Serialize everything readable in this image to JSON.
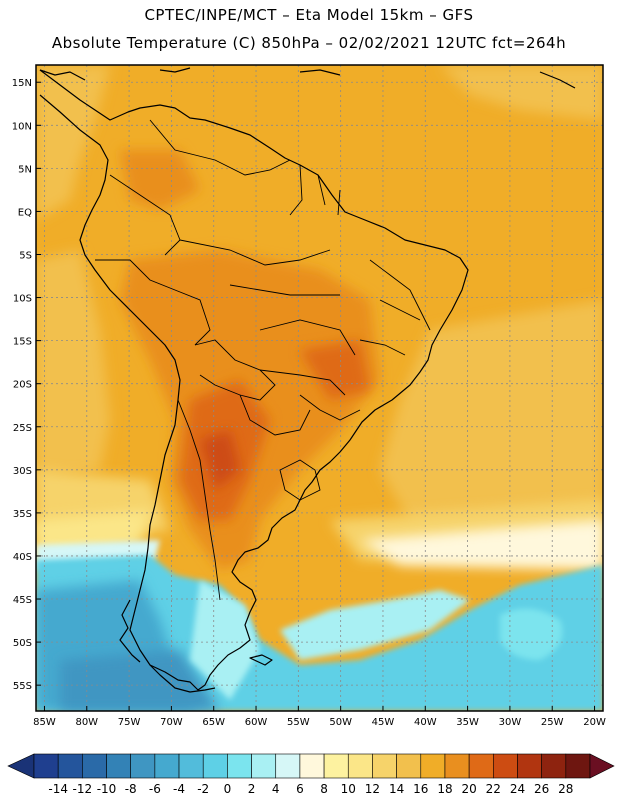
{
  "header": {
    "line1": "CPTEC/INPE/MCT –  Eta Model 15km – GFS",
    "line2": "Absolute Temperature (C) 850hPa – 02/02/2021 12UTC fct=264h"
  },
  "map": {
    "lon_range": [
      -86,
      -19
    ],
    "lat_range": [
      -58,
      17
    ],
    "lat_ticks": [
      {
        "value": 15,
        "label": "15N"
      },
      {
        "value": 10,
        "label": "10N"
      },
      {
        "value": 5,
        "label": "5N"
      },
      {
        "value": 0,
        "label": "EQ"
      },
      {
        "value": -5,
        "label": "5S"
      },
      {
        "value": -10,
        "label": "10S"
      },
      {
        "value": -15,
        "label": "15S"
      },
      {
        "value": -20,
        "label": "20S"
      },
      {
        "value": -25,
        "label": "25S"
      },
      {
        "value": -30,
        "label": "30S"
      },
      {
        "value": -35,
        "label": "35S"
      },
      {
        "value": -40,
        "label": "40S"
      },
      {
        "value": -45,
        "label": "45S"
      },
      {
        "value": -50,
        "label": "50S"
      },
      {
        "value": -55,
        "label": "55S"
      }
    ],
    "lon_ticks": [
      {
        "value": -85,
        "label": "85W"
      },
      {
        "value": -80,
        "label": "80W"
      },
      {
        "value": -75,
        "label": "75W"
      },
      {
        "value": -70,
        "label": "70W"
      },
      {
        "value": -65,
        "label": "65W"
      },
      {
        "value": -60,
        "label": "60W"
      },
      {
        "value": -55,
        "label": "55W"
      },
      {
        "value": -50,
        "label": "50W"
      },
      {
        "value": -45,
        "label": "45W"
      },
      {
        "value": -40,
        "label": "40W"
      },
      {
        "value": -35,
        "label": "35W"
      },
      {
        "value": -30,
        "label": "30W"
      },
      {
        "value": -25,
        "label": "25W"
      },
      {
        "value": -20,
        "label": "20W"
      }
    ],
    "gridlines": "dotted"
  },
  "colorbar": {
    "labels": [
      "-14",
      "-12",
      "-10",
      "-8",
      "-6",
      "-4",
      "-2",
      "0",
      "2",
      "4",
      "6",
      "8",
      "10",
      "12",
      "14",
      "16",
      "18",
      "20",
      "22",
      "24",
      "26",
      "28"
    ],
    "colors": [
      "#1f3f8f",
      "#24559c",
      "#2a6aa8",
      "#3382b6",
      "#3f96c2",
      "#45a9cf",
      "#52bcdb",
      "#5ed0e6",
      "#7be4ee",
      "#a9f0f3",
      "#d6f7f7",
      "#fff8dc",
      "#fdf2a0",
      "#fbe688",
      "#f6d36a",
      "#f2c04d",
      "#f0ad28",
      "#e98f1f",
      "#df6a17",
      "#cd4c12",
      "#b13510",
      "#8e230f",
      "#6e1610"
    ],
    "lowend_color": "#1a3377",
    "highend_color": "#6a0f22"
  }
}
